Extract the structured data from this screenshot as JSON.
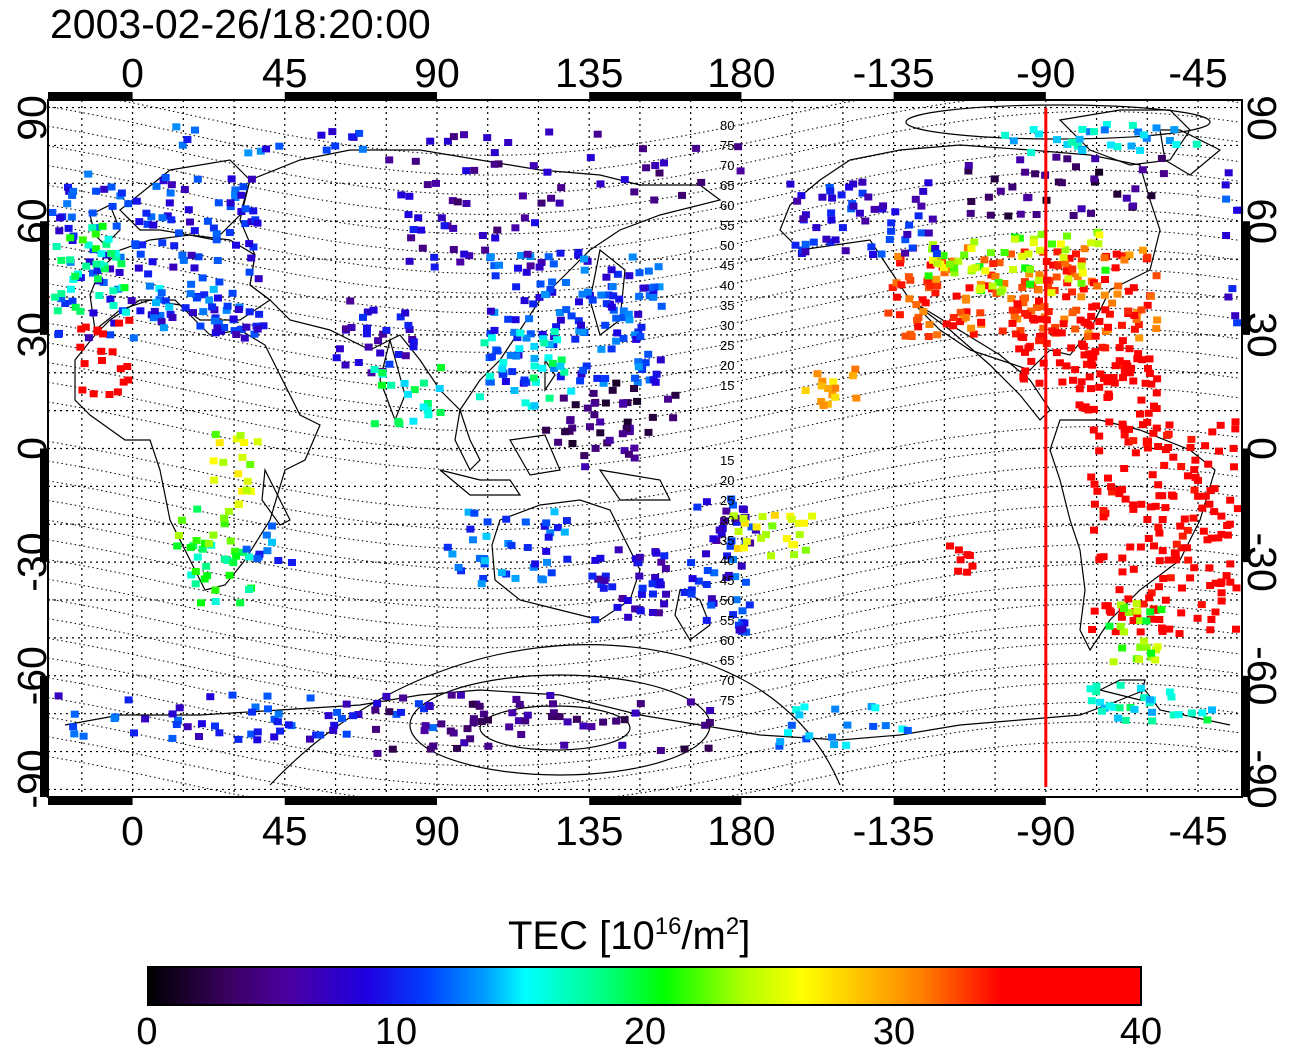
{
  "title": "2003-02-26/18:20:00",
  "map": {
    "lon_tick_labels": [
      "0",
      "45",
      "90",
      "135",
      "180",
      "-135",
      "-90",
      "-45"
    ],
    "lat_tick_labels": [
      "90",
      "60",
      "30",
      "0",
      "-30",
      "-60",
      "-90"
    ],
    "lon_ticks": [
      0,
      45,
      90,
      135,
      180,
      225,
      270,
      315
    ],
    "lat_ticks": [
      90,
      60,
      30,
      0,
      -30,
      -60,
      -90
    ],
    "lon_range": [
      -25,
      328
    ],
    "lat_range": [
      -92,
      92
    ],
    "contour_labels_north": [
      "80",
      "75",
      "70",
      "65",
      "60",
      "55",
      "50",
      "45",
      "40",
      "35",
      "30",
      "25",
      "20",
      "15"
    ],
    "contour_labels_south": [
      "15",
      "20",
      "25",
      "30",
      "35",
      "40",
      "45",
      "50",
      "55",
      "60",
      "65",
      "70",
      "75"
    ],
    "marker_longitude": -90,
    "marker_color": "#ff0000"
  },
  "colorbar": {
    "label": "TEC  [10",
    "label_exp1": "16",
    "label_mid": "/m",
    "label_exp2": "2",
    "label_end": "]",
    "ticks": [
      "0",
      "10",
      "20",
      "30",
      "40"
    ],
    "range": [
      0,
      40
    ]
  }
}
